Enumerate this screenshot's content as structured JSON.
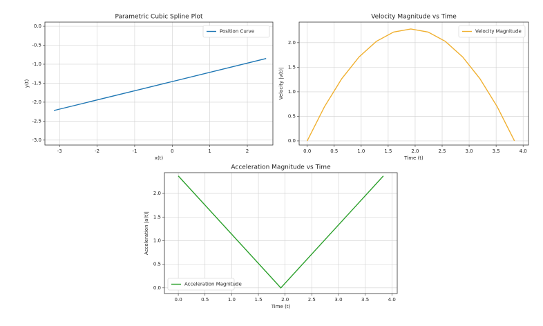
{
  "chart_data": [
    {
      "type": "line",
      "title": "Parametric Cubic Spline Plot",
      "x_label": "x(t)",
      "y_label": "y(t)",
      "x": [
        -3.15,
        -0.3,
        2.5
      ],
      "series": [
        {
          "name": "Position Curve",
          "color": "#1f77b4",
          "values": [
            -2.22,
            -1.53,
            -0.85
          ]
        }
      ],
      "xlim": [
        -3.39,
        2.68
      ],
      "xticks": [
        -3,
        -2,
        -1,
        0,
        1,
        2
      ],
      "ylim": [
        -3.13,
        0.11
      ],
      "yticks": [
        {
          "value": 0,
          "label": "0.0"
        },
        -0.5,
        {
          "value": -1,
          "label": "-1.0"
        },
        -1.5,
        {
          "value": -2,
          "label": "-2.0"
        },
        -2.5,
        {
          "value": -3,
          "label": "-3.0"
        }
      ],
      "grid": true,
      "legend": "upper right"
    },
    {
      "type": "line",
      "title": "Velocity Magnitude vs Time",
      "x_label": "Time (t)",
      "y_label": "Velocity |v(t)|",
      "x": [
        0,
        0.32,
        0.64,
        0.96,
        1.28,
        1.6,
        1.92,
        2.24,
        2.56,
        2.88,
        3.2,
        3.52,
        3.84
      ],
      "series": [
        {
          "name": "Velocity Magnitude",
          "color": "#f0b030",
          "values": [
            0,
            0.697,
            1.267,
            1.71,
            2.027,
            2.217,
            2.28,
            2.217,
            2.027,
            1.71,
            1.267,
            0.697,
            0
          ]
        }
      ],
      "xlim": [
        -0.15,
        4.1
      ],
      "xticks": [
        {
          "value": 0,
          "label": "0.0"
        },
        0.5,
        {
          "value": 1,
          "label": "1.0"
        },
        1.5,
        {
          "value": 2,
          "label": "2.0"
        },
        2.5,
        {
          "value": 3,
          "label": "3.0"
        },
        3.5,
        {
          "value": 4,
          "label": "4.0"
        }
      ],
      "ylim": [
        -0.085,
        2.42
      ],
      "yticks": [
        {
          "value": 0,
          "label": "0.0"
        },
        0.5,
        {
          "value": 1,
          "label": "1.0"
        },
        1.5,
        {
          "value": 2,
          "label": "2.0"
        }
      ],
      "grid": true,
      "legend": "upper right"
    },
    {
      "type": "line",
      "title": "Acceleration Magnitude vs Time",
      "x_label": "Time (t)",
      "y_label": "Acceleration |a(t)|",
      "x": [
        0,
        1.92,
        3.84
      ],
      "series": [
        {
          "name": "Acceleration Magnitude",
          "color": "#2ca02c",
          "values": [
            2.37,
            0,
            2.37
          ]
        }
      ],
      "xlim": [
        -0.26,
        4.1
      ],
      "xticks": [
        {
          "value": 0,
          "label": "0.0"
        },
        0.5,
        {
          "value": 1,
          "label": "1.0"
        },
        1.5,
        {
          "value": 2,
          "label": "2.0"
        },
        2.5,
        {
          "value": 3,
          "label": "3.0"
        },
        3.5,
        {
          "value": 4,
          "label": "4.0"
        }
      ],
      "ylim": [
        -0.12,
        2.44
      ],
      "yticks": [
        {
          "value": 0,
          "label": "0.0"
        },
        0.5,
        {
          "value": 1,
          "label": "1.0"
        },
        1.5,
        {
          "value": 2,
          "label": "2.0"
        }
      ],
      "grid": true,
      "legend": "lower left"
    }
  ]
}
